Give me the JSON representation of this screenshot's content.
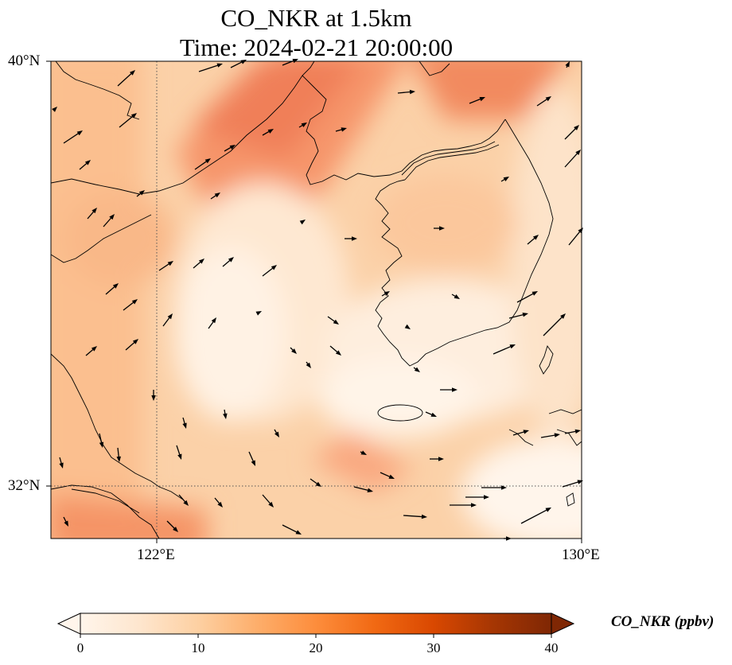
{
  "title_line1": "CO_NKR at 1.5km",
  "title_line2": "Time: 2024-02-21 20:00:00",
  "map": {
    "lon_range": [
      120,
      130
    ],
    "lat_range": [
      31,
      40
    ],
    "lat_labels": [
      "40°N",
      "32°N"
    ],
    "lon_labels": [
      "122°E",
      "130°E"
    ],
    "gridlines": {
      "lon": [
        122
      ],
      "lat": [
        32
      ],
      "style": "dotted"
    },
    "field": "CO_NKR",
    "colormap": "Oranges",
    "wind_vectors": "shown"
  },
  "colorbar": {
    "label": "CO_NKR (ppbv)",
    "min": 0,
    "max": 40,
    "ticks": [
      "0",
      "10",
      "20",
      "30",
      "40"
    ],
    "extend": "both",
    "stops": [
      "#fff5eb",
      "#fee6ce",
      "#fdd0a2",
      "#fdae6b",
      "#fd8d3c",
      "#f16913",
      "#d94801",
      "#a63603",
      "#7f2704"
    ]
  }
}
